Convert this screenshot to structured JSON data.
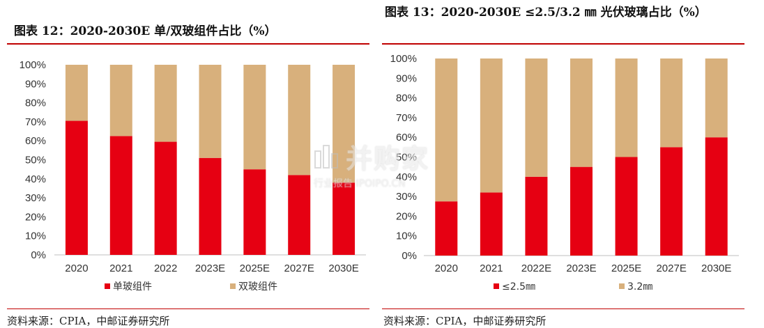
{
  "colors": {
    "red": "#e60012",
    "tan": "#d8b07c",
    "rule": "#c00000",
    "grid": "#d9d9d9"
  },
  "left": {
    "title": "图表 12：2020-2030E 单/双玻组件占比（%）",
    "source": "资料来源：CPIA，中邮证券研究所"
  },
  "right": {
    "title": "图表  13：2020-2030E  ≤2.5/3.2  ㎜ 光伏玻璃占比（%）",
    "source": "资料来源：CPIA，中邮证券研究所"
  },
  "watermark": {
    "main": "并购家",
    "sub": "行业报告 IPOIPO.CN"
  },
  "chart_data": [
    {
      "type": "bar",
      "stacked": true,
      "categories": [
        "2020",
        "2021",
        "2022",
        "2023E",
        "2025E",
        "2027E",
        "2030E"
      ],
      "series": [
        {
          "name": "单玻组件",
          "color": "#e60012",
          "values": [
            70.5,
            62.5,
            59.5,
            51,
            45,
            42,
            38
          ]
        },
        {
          "name": "双玻组件",
          "color": "#d8b07c",
          "values": [
            29.5,
            37.5,
            40.5,
            49,
            55,
            58,
            62
          ]
        }
      ],
      "yticks": [
        "0%",
        "10%",
        "20%",
        "30%",
        "40%",
        "50%",
        "60%",
        "70%",
        "80%",
        "90%",
        "100%"
      ],
      "ylim": [
        0,
        100
      ],
      "legend": "bottom"
    },
    {
      "type": "bar",
      "stacked": true,
      "categories": [
        "2020",
        "2021",
        "2022E",
        "2023E",
        "2025E",
        "2027E",
        "2030E"
      ],
      "series": [
        {
          "name": "≤2.5㎜",
          "color": "#e60012",
          "values": [
            27.5,
            32,
            40,
            45,
            50,
            55,
            60
          ]
        },
        {
          "name": "3.2㎜",
          "color": "#d8b07c",
          "values": [
            72.5,
            68,
            60,
            55,
            50,
            45,
            40
          ]
        }
      ],
      "yticks": [
        "0%",
        "10%",
        "20%",
        "30%",
        "40%",
        "50%",
        "60%",
        "70%",
        "80%",
        "90%",
        "100%"
      ],
      "ylim": [
        0,
        100
      ],
      "legend": "bottom"
    }
  ]
}
